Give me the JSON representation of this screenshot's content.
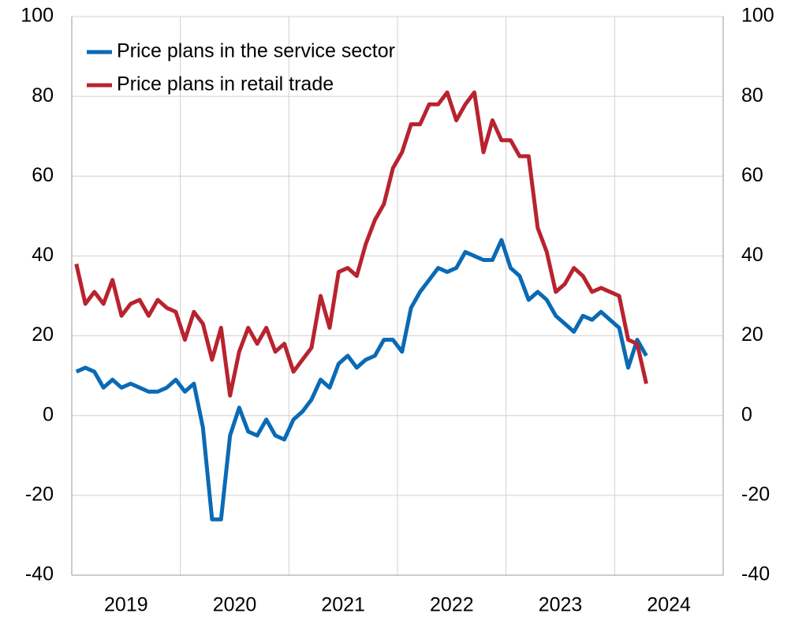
{
  "chart_data": {
    "type": "line",
    "x": [
      2019.042,
      2019.125,
      2019.208,
      2019.292,
      2019.375,
      2019.458,
      2019.542,
      2019.625,
      2019.708,
      2019.792,
      2019.875,
      2019.958,
      2020.042,
      2020.125,
      2020.208,
      2020.292,
      2020.375,
      2020.458,
      2020.542,
      2020.625,
      2020.708,
      2020.792,
      2020.875,
      2020.958,
      2021.042,
      2021.125,
      2021.208,
      2021.292,
      2021.375,
      2021.458,
      2021.542,
      2021.625,
      2021.708,
      2021.792,
      2021.875,
      2021.958,
      2022.042,
      2022.125,
      2022.208,
      2022.292,
      2022.375,
      2022.458,
      2022.542,
      2022.625,
      2022.708,
      2022.792,
      2022.875,
      2022.958,
      2023.042,
      2023.125,
      2023.208,
      2023.292,
      2023.375,
      2023.458,
      2023.542,
      2023.625,
      2023.708,
      2023.792,
      2023.875,
      2023.958,
      2024.042,
      2024.125,
      2024.208,
      2024.292
    ],
    "series": [
      {
        "name": "Price plans in the service sector",
        "color": "#0a6ab5",
        "values": [
          11,
          12,
          11,
          7,
          9,
          7,
          8,
          7,
          6,
          6,
          7,
          9,
          6,
          8,
          -3,
          -26,
          -26,
          -5,
          2,
          -4,
          -5,
          -1,
          -5,
          -6,
          -1,
          1,
          4,
          9,
          7,
          13,
          15,
          12,
          14,
          15,
          19,
          19,
          16,
          27,
          31,
          34,
          37,
          36,
          37,
          41,
          40,
          39,
          39,
          44,
          37,
          35,
          29,
          31,
          29,
          25,
          23,
          21,
          25,
          24,
          26,
          24,
          22,
          12,
          19,
          15
        ]
      },
      {
        "name": "Price plans in retail trade",
        "color": "#b8232f",
        "values": [
          38,
          28,
          31,
          28,
          34,
          25,
          28,
          29,
          25,
          29,
          27,
          26,
          19,
          26,
          23,
          14,
          22,
          5,
          16,
          22,
          18,
          22,
          16,
          18,
          11,
          14,
          17,
          30,
          22,
          36,
          37,
          35,
          43,
          49,
          53,
          62,
          66,
          73,
          73,
          78,
          78,
          81,
          74,
          78,
          81,
          66,
          74,
          69,
          69,
          65,
          65,
          47,
          41,
          31,
          33,
          37,
          35,
          31,
          32,
          31,
          30,
          19,
          18,
          8
        ]
      }
    ],
    "xlim": [
      2019,
      2025
    ],
    "xticks": [
      {
        "value": 2019.5,
        "label": "2019"
      },
      {
        "value": 2020.5,
        "label": "2020"
      },
      {
        "value": 2021.5,
        "label": "2021"
      },
      {
        "value": 2022.5,
        "label": "2022"
      },
      {
        "value": 2023.5,
        "label": "2023"
      },
      {
        "value": 2024.5,
        "label": "2024"
      }
    ],
    "xgrid": [
      2020,
      2021,
      2022,
      2023,
      2024
    ],
    "ylim": [
      -40,
      100
    ],
    "yticks": [
      -40,
      -20,
      0,
      20,
      40,
      60,
      80,
      100
    ],
    "y2lim": [
      -40,
      100
    ],
    "y2ticks": [
      -40,
      -20,
      0,
      20,
      40,
      60,
      80,
      100
    ],
    "grid": true,
    "legend": "upper-left"
  }
}
